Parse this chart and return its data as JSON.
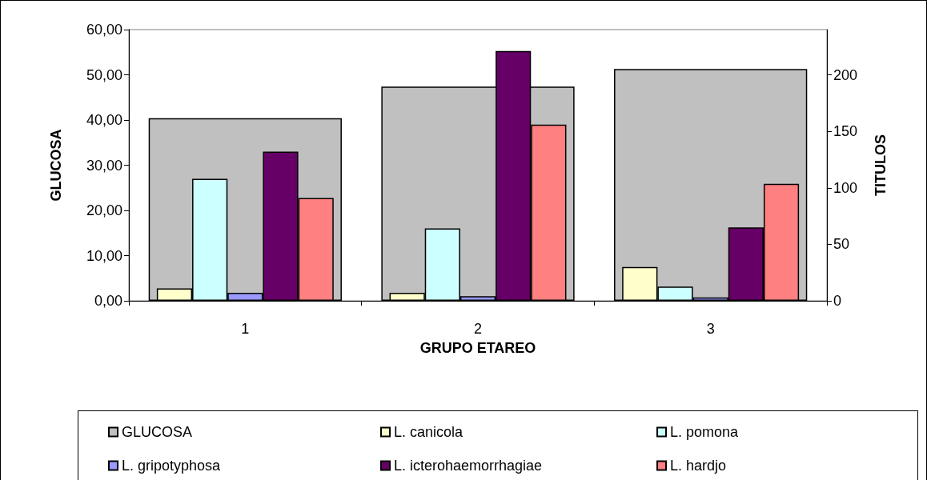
{
  "chart_data": {
    "type": "bar",
    "xlabel": "GRUPO ETAREO",
    "ylabel": "GLUCOSA",
    "y2label": "TITULOS",
    "categories": [
      "1",
      "2",
      "3"
    ],
    "series": [
      {
        "name": "GLUCOSA",
        "color": "#c0c0c0",
        "values": [
          40.4,
          47.4,
          51.3
        ]
      },
      {
        "name": "L. canicola",
        "color": "#ffffcc",
        "axis": "y2",
        "values": [
          11,
          7,
          30
        ]
      },
      {
        "name": "L. pomona",
        "color": "#ccffff",
        "axis": "y2",
        "values": [
          108,
          64,
          12.5
        ]
      },
      {
        "name": "L. gripotyphosa",
        "color": "#9999ff",
        "axis": "y2",
        "values": [
          7,
          4,
          3
        ]
      },
      {
        "name": "L. icterohaemorrhagiae",
        "color": "#660066",
        "axis": "y2",
        "values": [
          132,
          221,
          65
        ]
      },
      {
        "name": "L. hardjo",
        "color": "#ff8080",
        "axis": "y2",
        "values": [
          91,
          156,
          103.5
        ]
      }
    ],
    "ylim": [
      0,
      60
    ],
    "yticks": [
      {
        "value": 0,
        "label": "0,00"
      },
      {
        "value": 10,
        "label": "10,00"
      },
      {
        "value": 20,
        "label": "20,00"
      },
      {
        "value": 30,
        "label": "30,00"
      },
      {
        "value": 40,
        "label": "40,00"
      },
      {
        "value": 50,
        "label": "50,00"
      },
      {
        "value": 60,
        "label": "60,00"
      }
    ],
    "y2lim": [
      0,
      240
    ],
    "y2ticks": [
      0,
      50,
      100,
      150,
      200
    ],
    "grid": false,
    "legend": "bottom"
  }
}
